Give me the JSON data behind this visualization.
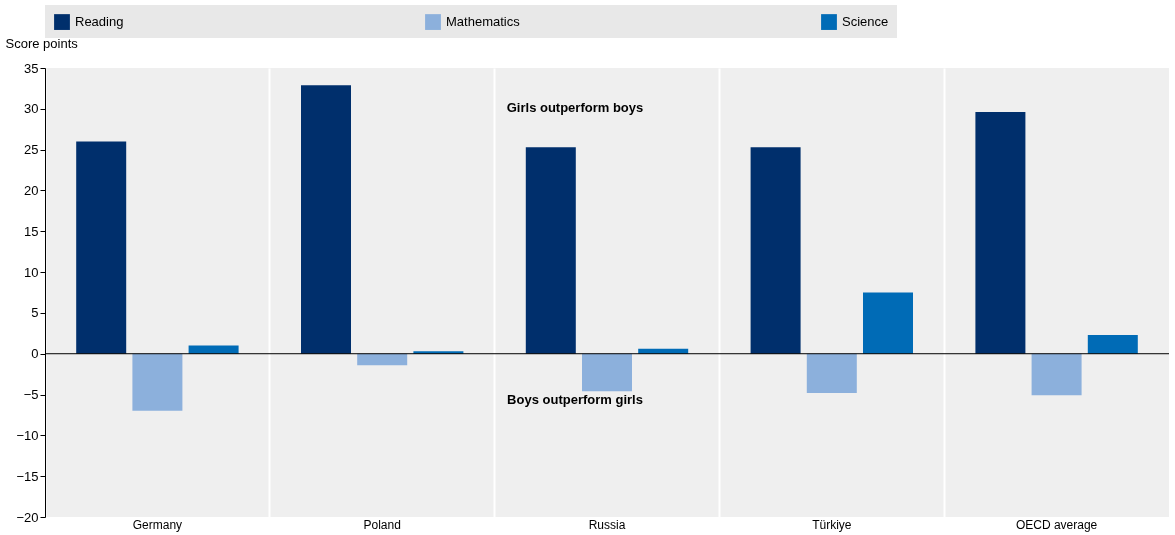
{
  "chart_data": {
    "type": "bar",
    "ylabel": "Score points",
    "categories": [
      "Germany",
      "Poland",
      "Russia",
      "Türkiye",
      "OECD average"
    ],
    "series": [
      {
        "name": "Reading",
        "color": "#002f6c",
        "values": [
          26.0,
          32.9,
          25.3,
          25.3,
          29.6
        ]
      },
      {
        "name": "Mathematics",
        "color": "#8cb0dc",
        "values": [
          -7.0,
          -1.4,
          -4.6,
          -4.8,
          -5.1
        ]
      },
      {
        "name": "Science",
        "color": "#006bb6",
        "values": [
          1.0,
          0.3,
          0.6,
          7.5,
          2.3
        ]
      }
    ],
    "ylim": [
      -20,
      35
    ],
    "yticks": [
      -20,
      -15,
      -10,
      -5,
      0,
      5,
      10,
      15,
      20,
      25,
      30,
      35
    ],
    "annotations": [
      "Girls outperform boys",
      "Boys outperform girls"
    ],
    "grid": "x",
    "legend": "top"
  }
}
